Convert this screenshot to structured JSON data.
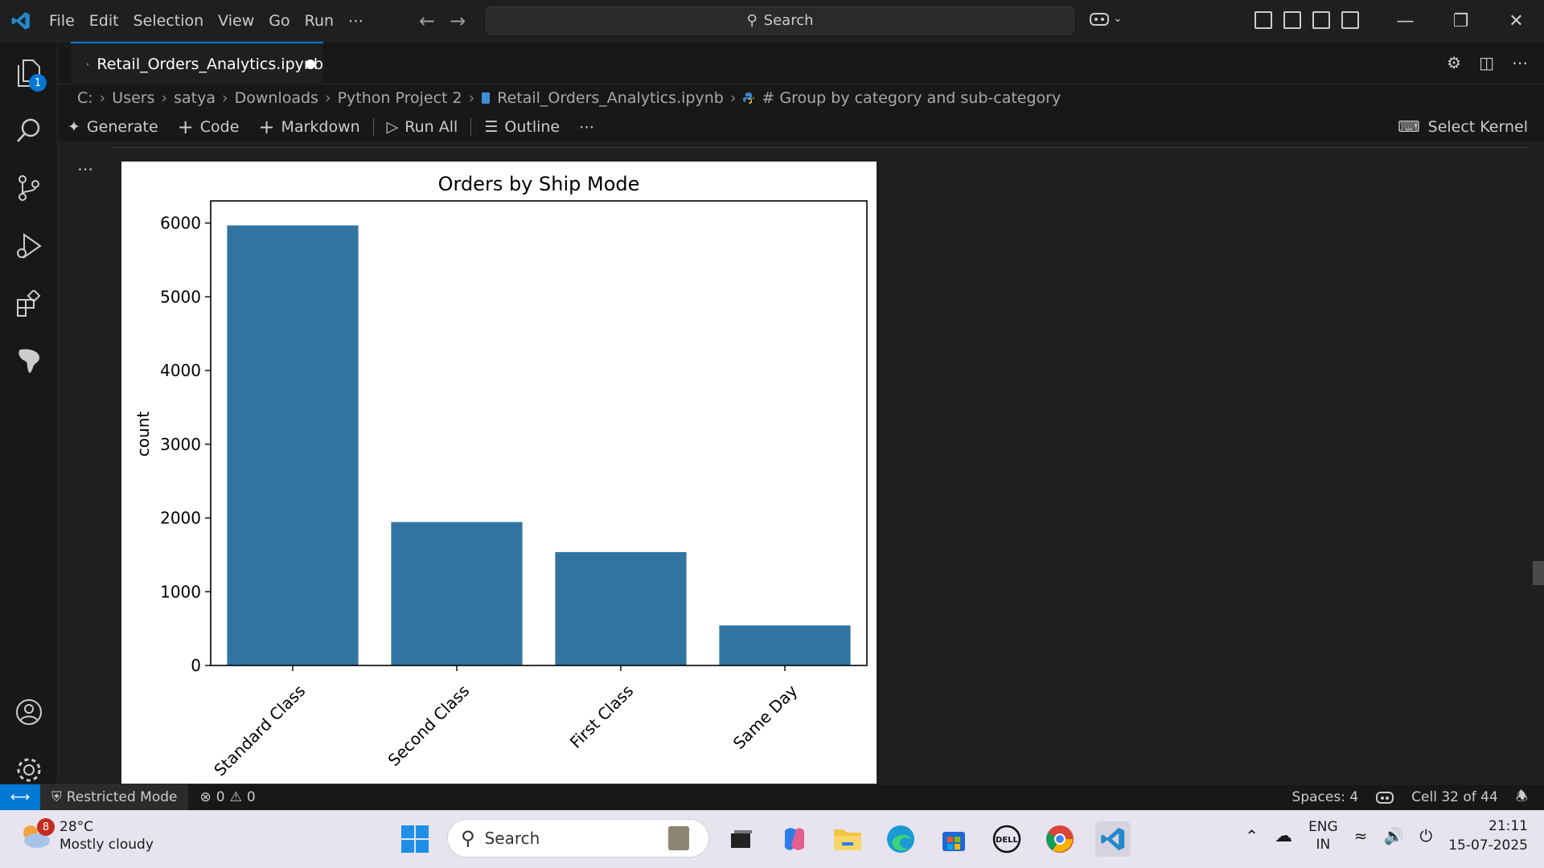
{
  "titlebar": {
    "menu": [
      "File",
      "Edit",
      "Selection",
      "View",
      "Go",
      "Run",
      "⋯"
    ],
    "search_label": "Search"
  },
  "activitybar": {
    "explorer_badge": "1"
  },
  "tab": {
    "filename": "Retail_Orders_Analytics.ipynb"
  },
  "breadcrumb": [
    "C:",
    "Users",
    "satya",
    "Downloads",
    "Python Project 2",
    "Retail_Orders_Analytics.ipynb",
    "# Group by category and sub-category"
  ],
  "toolbar": {
    "generate": "Generate",
    "code": "Code",
    "markdown": "Markdown",
    "run_all": "Run All",
    "outline": "Outline",
    "more": "⋯",
    "select_kernel": "Select Kernel"
  },
  "output": {
    "more": "⋯"
  },
  "chart_data": {
    "type": "bar",
    "title": "Orders by Ship Mode",
    "xlabel": "",
    "ylabel": "count",
    "categories": [
      "Standard Class",
      "Second Class",
      "First Class",
      "Same Day"
    ],
    "values": [
      5968,
      1945,
      1538,
      543
    ],
    "ylim": [
      0,
      6300
    ],
    "yticks": [
      0,
      1000,
      2000,
      3000,
      4000,
      5000,
      6000
    ],
    "bar_color": "#3274a1",
    "grid": false
  },
  "statusbar": {
    "restricted": "Restricted Mode",
    "errors": "0",
    "warnings": "0",
    "spaces": "Spaces: 4",
    "cell": "Cell 32 of 44"
  },
  "taskbar": {
    "weather_badge": "8",
    "temperature": "28°C",
    "condition": "Mostly cloudy",
    "search": "Search",
    "lang1": "ENG",
    "lang2": "IN",
    "time": "21:11",
    "date": "15-07-2025"
  },
  "colors": {
    "accent": "#0078d4",
    "bar": "#3274a1"
  }
}
